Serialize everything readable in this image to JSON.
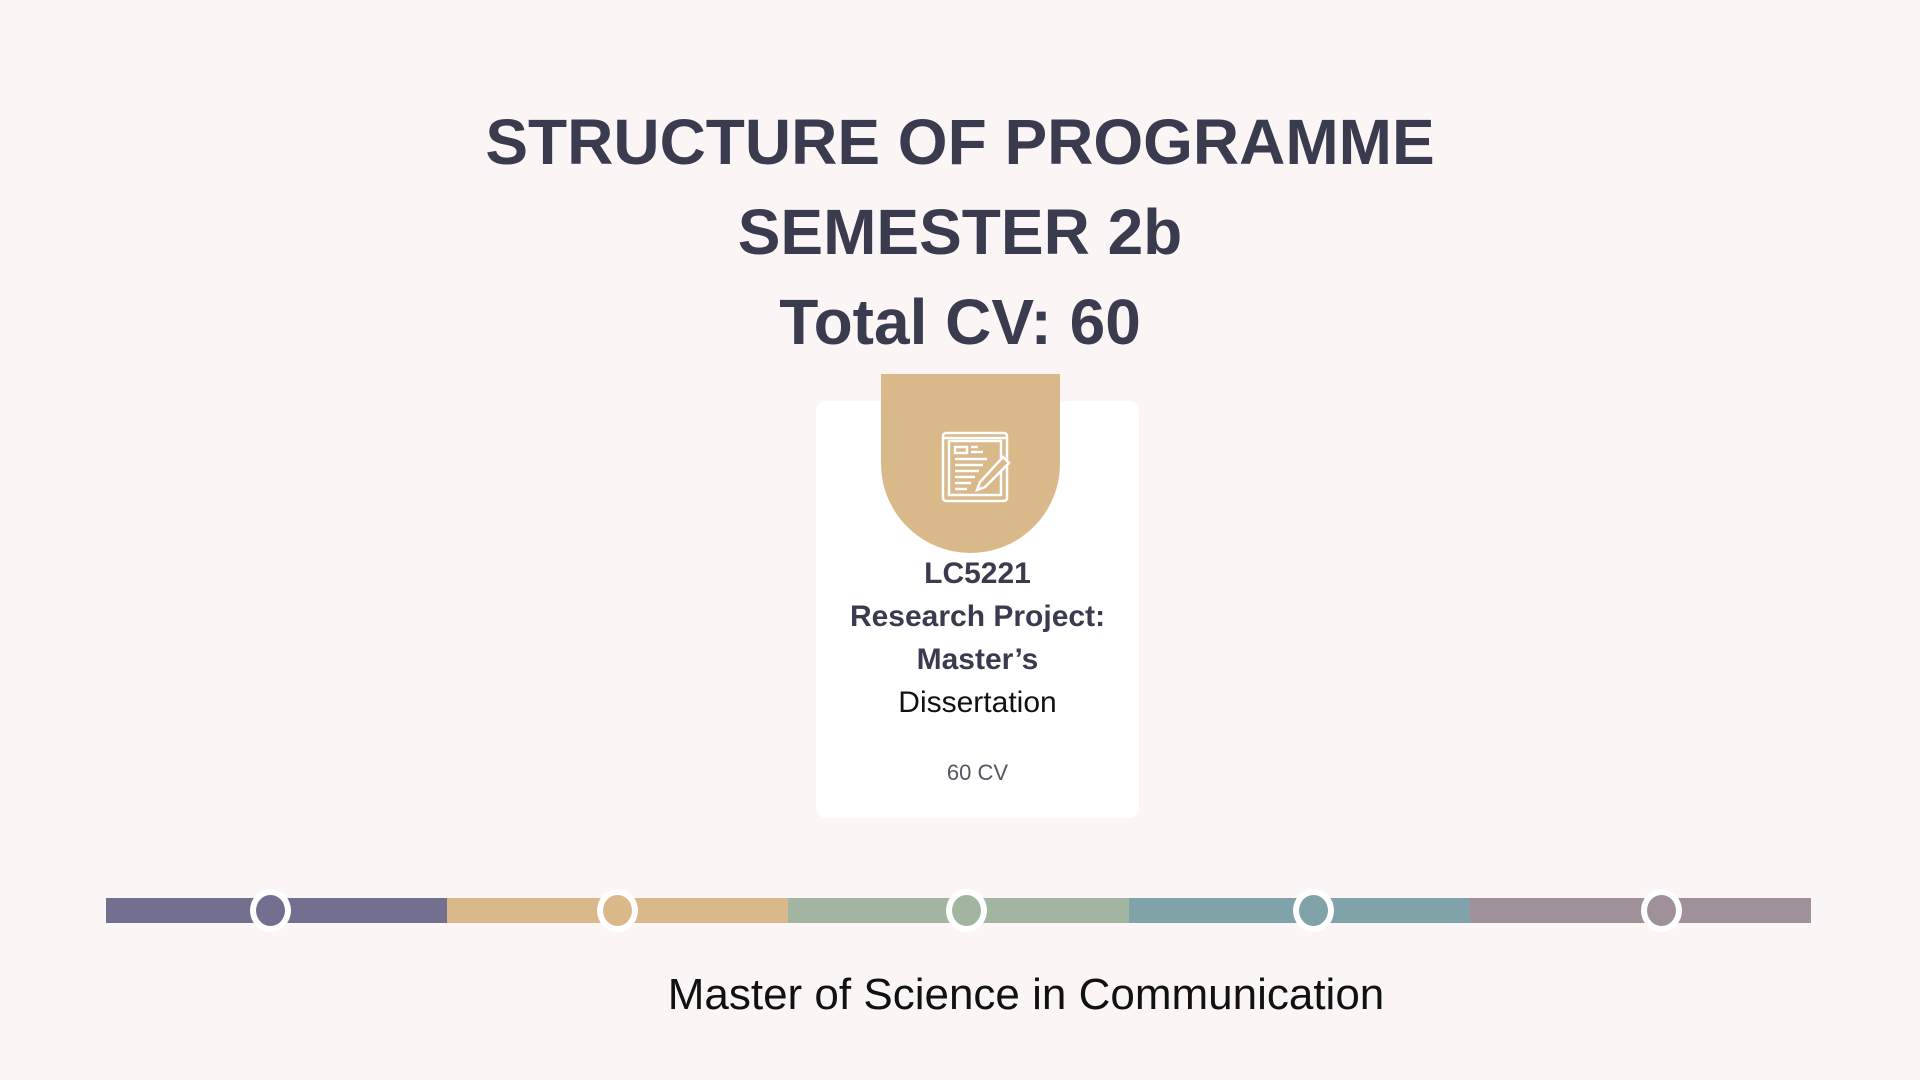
{
  "header": {
    "line1": "STRUCTURE OF PROGRAMME",
    "line2": "SEMESTER 2b",
    "line3": "Total CV: 60"
  },
  "module": {
    "icon": "document-edit-icon",
    "accent": "#d9b98a",
    "code": "LC5221",
    "title_line1": "Research Project:",
    "title_line2": "Master’s",
    "title_line3": "Dissertation",
    "credits": "60 CV"
  },
  "timeline": {
    "colors": [
      "#726f8f",
      "#d9b98a",
      "#a2b5a0",
      "#7fa3a8",
      "#a0909a"
    ]
  },
  "footer": {
    "programme": "Master of Science in Communication"
  }
}
